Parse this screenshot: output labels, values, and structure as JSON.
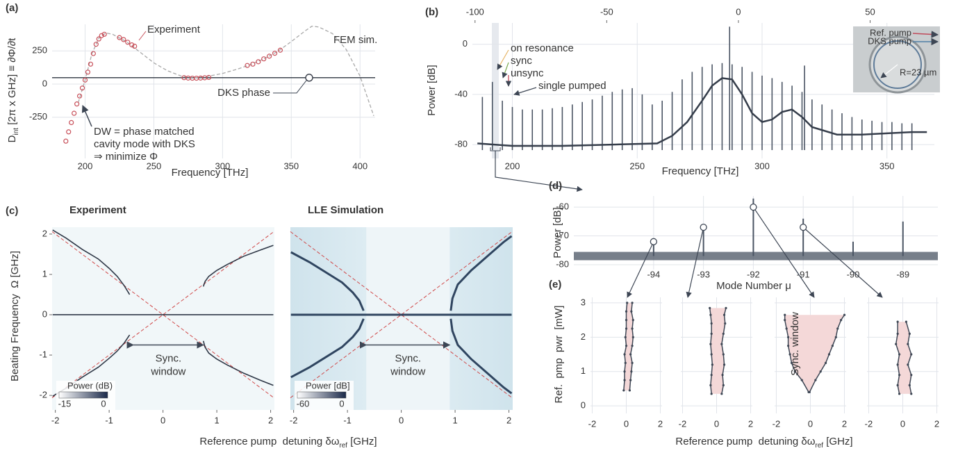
{
  "chart_data": [
    {
      "type": "line",
      "panel": "(a)",
      "xlabel": "Frequency [THz]",
      "ylabel": {
        "main": "D",
        "sub": "int",
        "rest": " [2π x GHz] ≡ ∂Φ/∂t"
      },
      "xlim": [
        176,
        411
      ],
      "ylim": [
        -560,
        450
      ],
      "xticks": [
        200,
        250,
        300,
        350,
        400
      ],
      "yticks": [
        -250,
        0,
        250
      ],
      "grid": true,
      "series": [
        {
          "name": "FEM sim.",
          "color": "#a8a8a8",
          "linestyle": "dashed",
          "x": [
            195,
            200,
            205,
            210,
            215,
            220,
            230,
            240,
            250,
            260,
            270,
            280,
            290,
            300,
            310,
            320,
            330,
            340,
            350,
            360,
            365,
            370,
            380,
            390,
            400,
            410
          ],
          "values": [
            -140,
            30,
            230,
            345,
            385,
            375,
            320,
            240,
            160,
            100,
            60,
            48,
            60,
            80,
            110,
            145,
            190,
            245,
            320,
            400,
            436,
            430,
            380,
            260,
            60,
            -240
          ]
        },
        {
          "name": "Experiment",
          "color": "#c8505a",
          "marker": "circle",
          "x": [
            186,
            188,
            190,
            192,
            194,
            196,
            198,
            200,
            202,
            204,
            206,
            208,
            210,
            212,
            214,
            225,
            228,
            231,
            234,
            236,
            272,
            275,
            278,
            281,
            284,
            287,
            290,
            318,
            322,
            326,
            330,
            334,
            338,
            342
          ],
          "values": [
            -430,
            -360,
            -290,
            -220,
            -150,
            -90,
            -30,
            30,
            90,
            150,
            230,
            300,
            340,
            365,
            375,
            350,
            335,
            315,
            295,
            285,
            48,
            45,
            44,
            44,
            45,
            47,
            50,
            140,
            150,
            168,
            190,
            210,
            232,
            255
          ]
        }
      ],
      "hline": {
        "label": "DKS phase",
        "value": 48,
        "x": 363
      },
      "annotations": [
        "DW = phase matched",
        "cavity mode with DKS",
        "⇒ minimize Φ"
      ]
    },
    {
      "type": "spectrum",
      "panel": "(b)",
      "xlabel": "Frequency [THz]",
      "ylabel": "Power [dB]",
      "xlim": [
        184,
        369
      ],
      "ylim": [
        -91,
        17
      ],
      "xticks": [
        200,
        250,
        300,
        350
      ],
      "yticks": [
        -80,
        -40,
        0
      ],
      "grid": true,
      "x2lim": [
        -101,
        74.4
      ],
      "x2ticks": [
        -100,
        -50,
        0,
        50
      ],
      "comb": {
        "color": "#4a5463",
        "x": [
          188,
          192,
          196,
          200,
          204,
          208,
          212,
          216,
          220,
          224,
          228,
          232,
          236,
          240,
          244,
          248,
          252,
          256,
          260,
          264,
          268,
          272,
          276,
          280,
          284,
          287,
          288,
          292,
          296,
          300,
          304,
          308,
          312,
          316,
          317,
          320,
          324,
          328,
          332,
          336,
          340,
          344,
          348,
          352,
          356,
          360
        ],
        "values": [
          -42,
          -30,
          -45,
          -50,
          -52,
          -52,
          -52,
          -51,
          -50,
          -48,
          -46,
          -44,
          -41,
          -38,
          -36,
          -35,
          -40,
          -48,
          -45,
          -38,
          -28,
          -22,
          -18,
          -16,
          -15,
          14,
          -16,
          -18,
          -22,
          -25,
          -27,
          -30,
          -33,
          -38,
          -17,
          -44,
          -48,
          -52,
          -55,
          -58,
          -60,
          -61,
          -62,
          -62,
          -63,
          -63
        ]
      },
      "floor": {
        "color": "#353d4a",
        "x": [
          186,
          200,
          220,
          240,
          258,
          264,
          270,
          276,
          280,
          284,
          288,
          292,
          296,
          300,
          304,
          308,
          312,
          316,
          320,
          330,
          340,
          350,
          360,
          366
        ],
        "values": [
          -79,
          -81,
          -81,
          -80,
          -79,
          -73,
          -62,
          -45,
          -33,
          -27,
          -28,
          -40,
          -55,
          -62,
          -60,
          -54,
          -52,
          -58,
          -66,
          -72,
          -72,
          -71,
          -70,
          -70
        ]
      },
      "labels": [
        {
          "text": "on resonance",
          "color": "#e6b465"
        },
        {
          "text": "sync",
          "color": "#7cab52"
        },
        {
          "text": "unsync",
          "color": "#c23b4e"
        },
        {
          "text": "single pumped",
          "color": "#3d4654"
        }
      ],
      "inset": {
        "labels": [
          {
            "text": "Ref. pump",
            "color": "#c04a5a"
          },
          {
            "text": "DKS pump",
            "color": "#4f7fa5"
          }
        ],
        "radius_label": "R=23 µm"
      }
    },
    {
      "type": "curves",
      "panel": "(c)",
      "title": "Experiment",
      "xlabel": {
        "main": "Reference pump  detuning δω",
        "sub": "ref",
        "rest": " [GHz]"
      },
      "ylabel": "Beating Frequency  Ω [GHz]",
      "xlim": [
        -2.06,
        2.07
      ],
      "ylim": [
        -2.36,
        2.17
      ],
      "xticks": [
        -2,
        -1,
        0,
        1,
        2
      ],
      "yticks": [
        -2,
        -1,
        0,
        1,
        2
      ],
      "curves": [
        {
          "x": [
            -2.05,
            -1.8,
            -1.5,
            -1.2,
            -1,
            -0.85,
            -0.72,
            -0.62
          ],
          "values": [
            2.1,
            1.9,
            1.62,
            1.38,
            1.15,
            0.95,
            0.72,
            0.5
          ]
        },
        {
          "x": [
            0.75,
            0.78,
            0.85,
            1,
            1.2,
            1.5,
            1.8,
            2.05
          ],
          "values": [
            0.7,
            0.82,
            0.95,
            1.1,
            1.25,
            1.45,
            1.6,
            1.72
          ]
        },
        {
          "x": [
            -2.05,
            -1.8,
            -1.5,
            -1.2,
            -1,
            -0.85,
            -0.72,
            -0.62
          ],
          "values": [
            -2.02,
            -1.82,
            -1.55,
            -1.3,
            -1.08,
            -0.9,
            -0.7,
            -0.5
          ]
        },
        {
          "x": [
            0.75,
            0.78,
            0.85,
            1,
            1.2,
            1.5,
            1.8,
            2.05
          ],
          "values": [
            -0.65,
            -0.8,
            -0.95,
            -1.1,
            -1.25,
            -1.45,
            -1.62,
            -1.75
          ]
        },
        {
          "x": [
            -2.05,
            2.05
          ],
          "values": [
            0,
            0
          ]
        }
      ],
      "sync_window": {
        "label": [
          "Sync.",
          "window"
        ],
        "start": -0.55,
        "end": 0.75,
        "y": -0.75
      },
      "colorbar": {
        "label": "Power (dB)",
        "ticks": [
          -15,
          0
        ]
      }
    },
    {
      "type": "curves",
      "title": "LLE Simulation",
      "xlim": [
        -2.06,
        2.07
      ],
      "ylim": [
        -2.36,
        2.17
      ],
      "xticks": [
        -2,
        -1,
        0,
        1,
        2
      ],
      "curves": [
        {
          "x": [
            -2.05,
            -1.7,
            -1.4,
            -1.1,
            -0.9,
            -0.78,
            -0.7
          ],
          "values": [
            1.55,
            1.3,
            1.05,
            0.8,
            0.55,
            0.35,
            0.1
          ]
        },
        {
          "x": [
            0.92,
            0.95,
            1.05,
            1.3,
            1.6,
            1.9,
            2.05
          ],
          "values": [
            0.1,
            0.4,
            0.75,
            1.1,
            1.45,
            1.8,
            1.95
          ]
        },
        {
          "x": [
            -2.05,
            -1.7,
            -1.4,
            -1.1,
            -0.9,
            -0.78,
            -0.7
          ],
          "values": [
            -1.55,
            -1.3,
            -1.05,
            -0.8,
            -0.55,
            -0.35,
            -0.1
          ]
        },
        {
          "x": [
            0.92,
            0.95,
            1.05,
            1.3,
            1.6,
            1.9,
            2.05
          ],
          "values": [
            -0.1,
            -0.4,
            -0.75,
            -1.1,
            -1.45,
            -1.8,
            -1.95
          ]
        },
        {
          "x": [
            -2.05,
            2.05
          ],
          "values": [
            0,
            0
          ]
        }
      ],
      "sync_window": {
        "label": [
          "Sync.",
          "window"
        ],
        "start": -0.65,
        "end": 0.9,
        "y": -0.75
      },
      "colorbar": {
        "label": "Power [dB]",
        "ticks": [
          -60,
          0
        ]
      }
    },
    {
      "type": "spikes",
      "panel": "(d)",
      "xlabel": "Mode Number μ",
      "ylabel": "Power [dB]",
      "xlim": [
        -95.6,
        -88.3
      ],
      "ylim": [
        -81.7,
        -56.1
      ],
      "xticks": [
        -94,
        -93,
        -92,
        -91,
        -90,
        -89
      ],
      "yticks": [
        -80,
        -70,
        -60
      ],
      "grid": true,
      "color": "#4a5463",
      "x": [
        -94,
        -93,
        -92,
        -91,
        -90,
        -89
      ],
      "values": [
        -72,
        -66,
        -57,
        -64,
        -72,
        -65
      ],
      "noise_floor": -77,
      "circle_x": [
        -94,
        -93,
        -92,
        -91
      ],
      "circle_values": [
        -72,
        -67,
        -60,
        -67
      ]
    },
    {
      "type": "window",
      "panel": "(e)",
      "xlabel": {
        "main": "Reference pump  detuning δω",
        "sub": "ref",
        "rest": " [GHz]"
      },
      "ylabel": "Ref.  pmp  pwr  [mW]",
      "xlim": [
        -2.1,
        2.1
      ],
      "ylim": [
        -0.22,
        3.16
      ],
      "xticks": [
        -2,
        0,
        2
      ],
      "yticks": [
        0,
        1,
        2,
        3
      ],
      "grid": true,
      "power": [
        0.45,
        0.75,
        1,
        1.25,
        1.5,
        1.75,
        2,
        2.25,
        2.5,
        2.75,
        3
      ],
      "left": [
        -0.15,
        -0.1,
        -0.1,
        -0.05,
        -0.1,
        0,
        -0.05,
        0,
        0,
        0,
        0.05
      ],
      "right": [
        0.2,
        0.25,
        0.3,
        0.35,
        0.25,
        0.35,
        0.4,
        0.35,
        0.4,
        0.3,
        0.35
      ]
    },
    {
      "type": "window",
      "xlim": [
        -2.1,
        2.1
      ],
      "ylim": [
        -0.22,
        3.16
      ],
      "xticks": [
        -2,
        0,
        2
      ],
      "yticks": [
        0,
        1,
        2,
        3
      ],
      "grid": true,
      "power": [
        0.35,
        0.6,
        0.9,
        1.2,
        1.5,
        1.8,
        2.1,
        2.4,
        2.65,
        2.85
      ],
      "left": [
        -0.3,
        -0.35,
        -0.3,
        -0.25,
        -0.3,
        -0.35,
        -0.3,
        -0.3,
        -0.35,
        -0.4
      ],
      "right": [
        0.3,
        0.4,
        0.35,
        0.45,
        0.4,
        0.3,
        0.4,
        0.5,
        0.45,
        0.55
      ]
    },
    {
      "type": "window",
      "xlim": [
        -2.1,
        2.1
      ],
      "ylim": [
        -0.22,
        3.16
      ],
      "xticks": [
        -2,
        0,
        2
      ],
      "yticks": [
        0,
        1,
        2,
        3
      ],
      "grid": true,
      "power": [
        0.4,
        0.75,
        1,
        1.25,
        1.5,
        1.75,
        2,
        2.25,
        2.5,
        2.65
      ],
      "left": [
        -0.1,
        -0.5,
        -0.9,
        -1.1,
        -1.2,
        -1.3,
        -1.3,
        -1.4,
        -1.5,
        -1.5
      ],
      "right": [
        -0.05,
        0.3,
        0.6,
        0.9,
        1.1,
        1.3,
        1.5,
        1.6,
        1.8,
        2
      ],
      "label": "Sync. window"
    },
    {
      "type": "window",
      "xlim": [
        -2.1,
        2.1
      ],
      "ylim": [
        -0.22,
        3.16
      ],
      "xticks": [
        -2,
        0,
        2
      ],
      "yticks": [
        0,
        1,
        2,
        3
      ],
      "grid": true,
      "power": [
        0.35,
        0.6,
        0.9,
        1.2,
        1.5,
        1.8,
        2.1,
        2.45
      ],
      "left": [
        -0.2,
        -0.3,
        -0.2,
        -0.3,
        -0.2,
        -0.4,
        -0.3,
        -0.3
      ],
      "right": [
        0.5,
        0.4,
        0.5,
        0.3,
        0.5,
        0.3,
        0.4,
        0.2
      ]
    }
  ]
}
